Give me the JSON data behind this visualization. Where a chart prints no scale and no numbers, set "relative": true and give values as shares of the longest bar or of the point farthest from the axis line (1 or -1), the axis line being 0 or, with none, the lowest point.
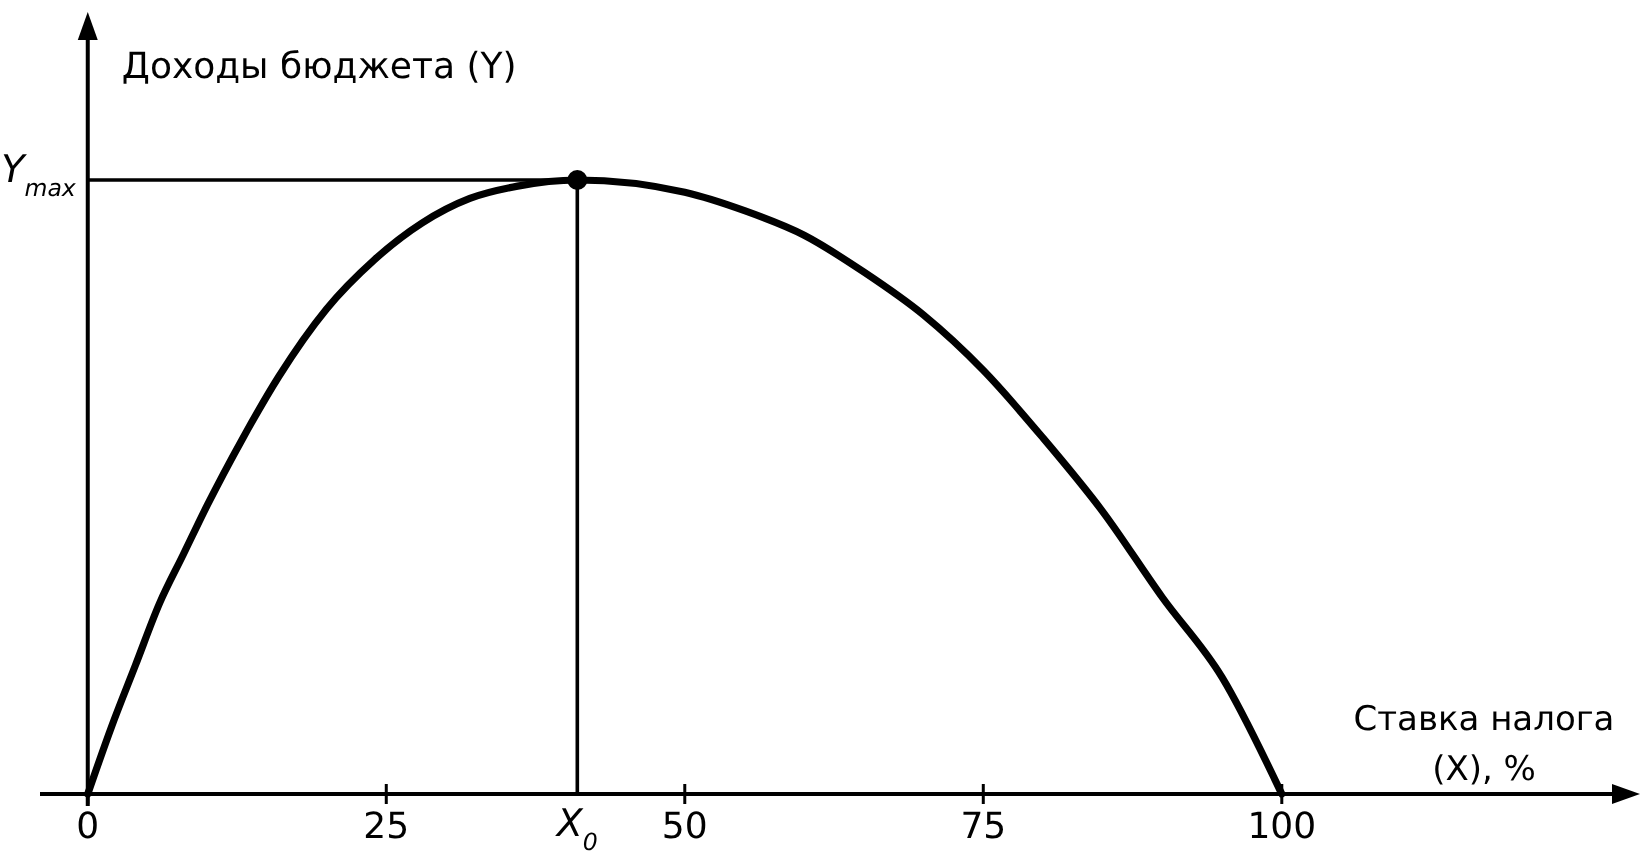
{
  "chart_data": {
    "type": "line",
    "xlabel": "Ставка налога (X), %",
    "ylabel": "Доходы бюджета (Y)",
    "relative": true,
    "xlim": [
      -4,
      130
    ],
    "xticks": [
      0,
      25,
      50,
      75,
      100
    ],
    "series": [
      {
        "color": "#000000",
        "x": [
          0,
          2,
          4,
          6,
          8,
          10,
          13,
          16,
          20,
          24,
          28,
          32,
          36,
          41,
          50,
          55,
          60,
          65,
          70,
          75,
          80,
          85,
          90,
          95,
          100
        ],
        "values": [
          0,
          0.11,
          0.21,
          0.31,
          0.39,
          0.47,
          0.58,
          0.68,
          0.79,
          0.87,
          0.93,
          0.97,
          0.99,
          1,
          0.98,
          0.95,
          0.91,
          0.85,
          0.78,
          0.69,
          0.58,
          0.46,
          0.32,
          0.19,
          0
        ]
      },
      {
        "color": "#000000",
        "x": [
          0,
          41,
          41
        ],
        "values": [
          1,
          1,
          0
        ]
      },
      {
        "type": "scatter",
        "color": "#000000",
        "x": [
          41
        ],
        "values": [
          1
        ]
      }
    ],
    "annotations": [
      {
        "text": "Y$_{max}$",
        "x": 0,
        "y": 1
      },
      {
        "text": "X$_{0}$",
        "x": 41,
        "y": 0
      }
    ]
  }
}
